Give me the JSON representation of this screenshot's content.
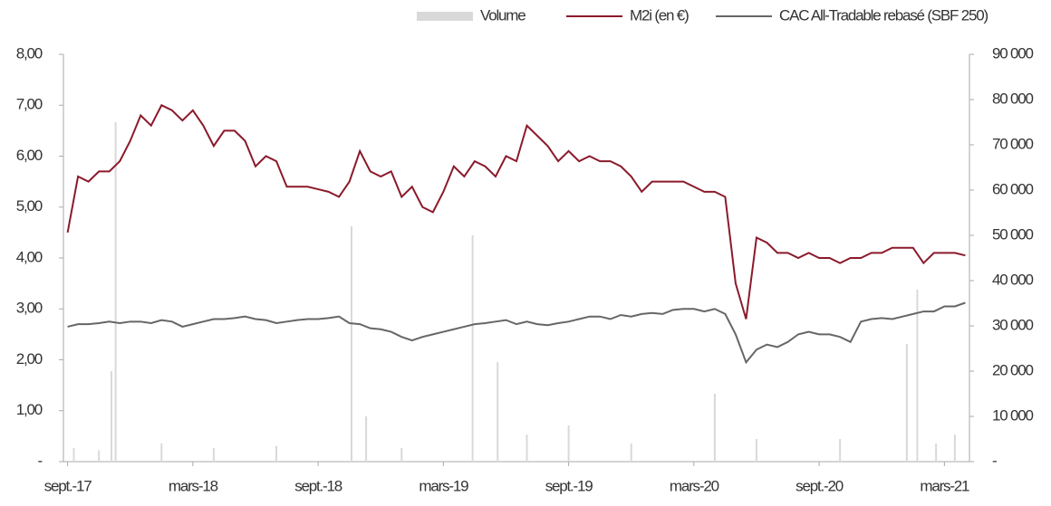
{
  "chart_data": {
    "type": "line",
    "xlim": [
      -0.2,
      43.2
    ],
    "xticks": [
      {
        "value": 0,
        "label": "sept.-17"
      },
      {
        "value": 6,
        "label": "mars-18"
      },
      {
        "value": 12,
        "label": "sept.-18"
      },
      {
        "value": 18,
        "label": "mars-19"
      },
      {
        "value": 24,
        "label": "sept.-19"
      },
      {
        "value": 30,
        "label": "mars-20"
      },
      {
        "value": 36,
        "label": "sept.-20"
      },
      {
        "value": 42,
        "label": "mars-21"
      }
    ],
    "ylim": [
      0,
      8
    ],
    "yticks": [
      {
        "value": 0,
        "label": "-"
      },
      {
        "value": 1,
        "label": "1,00"
      },
      {
        "value": 2,
        "label": "2,00"
      },
      {
        "value": 3,
        "label": "3,00"
      },
      {
        "value": 4,
        "label": "4,00"
      },
      {
        "value": 5,
        "label": "5,00"
      },
      {
        "value": 6,
        "label": "6,00"
      },
      {
        "value": 7,
        "label": "7,00"
      },
      {
        "value": 8,
        "label": "8,00"
      }
    ],
    "y2lim": [
      0,
      90000
    ],
    "y2ticks": [
      {
        "value": 0,
        "label": "-"
      },
      {
        "value": 10000,
        "label": "10 000"
      },
      {
        "value": 20000,
        "label": "20 000"
      },
      {
        "value": 30000,
        "label": "30 000"
      },
      {
        "value": 40000,
        "label": "40 000"
      },
      {
        "value": 50000,
        "label": "50 000"
      },
      {
        "value": 60000,
        "label": "60 000"
      },
      {
        "value": 70000,
        "label": "70 000"
      },
      {
        "value": 80000,
        "label": "80 000"
      },
      {
        "value": 90000,
        "label": "90 000"
      }
    ],
    "x": [
      0,
      0.5,
      1,
      1.5,
      2,
      2.5,
      3,
      3.5,
      4,
      4.5,
      5,
      5.5,
      6,
      6.5,
      7,
      7.5,
      8,
      8.5,
      9,
      9.5,
      10,
      10.5,
      11,
      11.5,
      12,
      12.5,
      13,
      13.5,
      14,
      14.5,
      15,
      15.5,
      16,
      16.5,
      17,
      17.5,
      18,
      18.5,
      19,
      19.5,
      20,
      20.5,
      21,
      21.5,
      22,
      22.5,
      23,
      23.5,
      24,
      24.5,
      25,
      25.5,
      26,
      26.5,
      27,
      27.5,
      28,
      28.5,
      29,
      29.5,
      30,
      30.5,
      31,
      31.5,
      32,
      32.5,
      33,
      33.5,
      34,
      34.5,
      35,
      35.5,
      36,
      36.5,
      37,
      37.5,
      38,
      38.5,
      39,
      39.5,
      40,
      40.5,
      41,
      41.5,
      42,
      42.5,
      43
    ],
    "series": [
      {
        "name": "Volume",
        "color": "#d9d9d9",
        "kind": "bar",
        "axis": "y2",
        "x": [
          0.3,
          1.5,
          2.1,
          2.3,
          4.5,
          7,
          10,
          13.6,
          14.3,
          16,
          19.4,
          20.6,
          22,
          24,
          27,
          31,
          33,
          37,
          40.2,
          40.7,
          41.6,
          42.5
        ],
        "values": [
          3000,
          2500,
          20000,
          75000,
          4000,
          3000,
          3500,
          52000,
          10000,
          3000,
          50000,
          22000,
          6000,
          8000,
          4000,
          15000,
          5000,
          5000,
          26000,
          38000,
          4000,
          6000
        ]
      },
      {
        "name": "M2i (en €)",
        "color": "#8b1a2b",
        "kind": "line",
        "values": [
          4.5,
          5.6,
          5.5,
          5.7,
          5.7,
          5.9,
          6.3,
          6.8,
          6.6,
          7.0,
          6.9,
          6.7,
          6.9,
          6.6,
          6.2,
          6.5,
          6.5,
          6.3,
          5.8,
          6.0,
          5.9,
          5.4,
          5.4,
          5.4,
          5.35,
          5.3,
          5.2,
          5.5,
          6.1,
          5.7,
          5.6,
          5.7,
          5.2,
          5.4,
          5.0,
          4.9,
          5.3,
          5.8,
          5.6,
          5.9,
          5.8,
          5.6,
          6.0,
          5.9,
          6.6,
          6.4,
          6.2,
          5.9,
          6.1,
          5.9,
          6.0,
          5.9,
          5.9,
          5.8,
          5.6,
          5.3,
          5.5,
          5.5,
          5.5,
          5.5,
          5.4,
          5.3,
          5.3,
          5.2,
          3.5,
          2.8,
          4.4,
          4.3,
          4.1,
          4.1,
          4.0,
          4.1,
          4.0,
          4.0,
          3.9,
          4.0,
          4.0,
          4.1,
          4.1,
          4.2,
          4.2,
          4.2,
          3.9,
          4.1,
          4.1,
          4.1,
          4.05
        ]
      },
      {
        "name": "CAC All-Tradable rebasé (SBF 250)",
        "color": "#666666",
        "kind": "line",
        "values": [
          2.65,
          2.7,
          2.7,
          2.72,
          2.75,
          2.72,
          2.75,
          2.75,
          2.72,
          2.78,
          2.75,
          2.65,
          2.7,
          2.75,
          2.8,
          2.8,
          2.82,
          2.85,
          2.8,
          2.78,
          2.72,
          2.75,
          2.78,
          2.8,
          2.8,
          2.82,
          2.85,
          2.72,
          2.7,
          2.62,
          2.6,
          2.55,
          2.45,
          2.38,
          2.45,
          2.5,
          2.55,
          2.6,
          2.65,
          2.7,
          2.72,
          2.75,
          2.78,
          2.7,
          2.75,
          2.7,
          2.68,
          2.72,
          2.75,
          2.8,
          2.85,
          2.85,
          2.8,
          2.88,
          2.85,
          2.9,
          2.92,
          2.9,
          2.98,
          3.0,
          3.0,
          2.95,
          3.0,
          2.9,
          2.5,
          1.95,
          2.2,
          2.3,
          2.25,
          2.35,
          2.5,
          2.55,
          2.5,
          2.5,
          2.45,
          2.35,
          2.75,
          2.8,
          2.82,
          2.8,
          2.85,
          2.9,
          2.95,
          2.95,
          3.05,
          3.05,
          3.12
        ]
      }
    ]
  }
}
